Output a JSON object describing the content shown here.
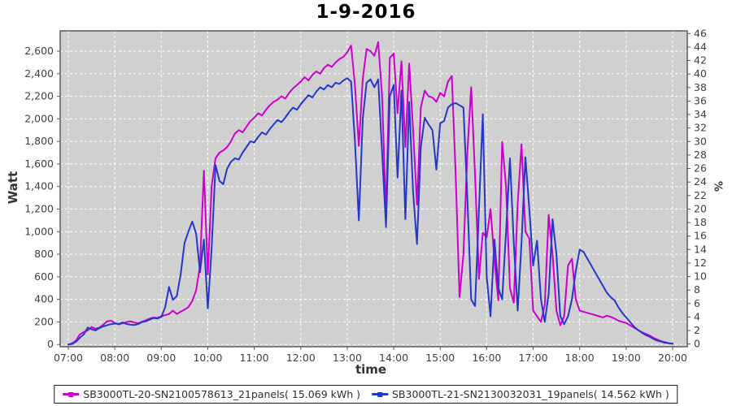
{
  "title": "1-9-2016",
  "chart_data": {
    "type": "line",
    "title": "1-9-2016",
    "plot_bg": "#d0d0d0",
    "grid_color": "#ffffff",
    "border_color": "#5a5a5a",
    "x_axis": {
      "label": "time",
      "tick_hours": [
        7,
        8,
        9,
        10,
        11,
        12,
        13,
        14,
        15,
        16,
        17,
        18,
        19,
        20
      ],
      "tick_labels": [
        "07:00",
        "08:00",
        "09:00",
        "10:00",
        "11:00",
        "12:00",
        "13:00",
        "14:00",
        "15:00",
        "16:00",
        "17:00",
        "18:00",
        "19:00",
        "20:00"
      ],
      "range_hours": [
        6.825,
        20.315
      ]
    },
    "y_left": {
      "label": "Watt",
      "ticks": [
        0,
        200,
        400,
        600,
        800,
        1000,
        1200,
        1400,
        1600,
        1800,
        2000,
        2200,
        2400,
        2600
      ],
      "tick_labels": [
        "0",
        "200",
        "400",
        "600",
        "800",
        "1,000",
        "1,200",
        "1,400",
        "1,600",
        "1,800",
        "2,000",
        "2,200",
        "2,400",
        "2,600"
      ],
      "range": [
        -20,
        2780
      ]
    },
    "y_right": {
      "label": "%",
      "ticks": [
        0,
        2,
        4,
        6,
        8,
        10,
        12,
        14,
        16,
        18,
        20,
        22,
        24,
        26,
        28,
        30,
        32,
        34,
        36,
        38,
        40,
        42,
        44,
        46
      ],
      "range": [
        -0.4,
        46.4
      ]
    },
    "legend_position": "bottom",
    "series": [
      {
        "name": "SB3000TL-20-SN2100578613_21panels( 15.069 kWh )",
        "color": "#cc00cc",
        "t_start_hour": 7,
        "t_step_minutes": 5,
        "values_watt": [
          0,
          10,
          35,
          90,
          110,
          125,
          155,
          140,
          150,
          175,
          205,
          210,
          190,
          178,
          188,
          198,
          205,
          195,
          188,
          202,
          215,
          230,
          240,
          235,
          250,
          260,
          270,
          300,
          270,
          290,
          310,
          330,
          385,
          480,
          700,
          1540,
          620,
          1400,
          1650,
          1700,
          1720,
          1750,
          1800,
          1870,
          1900,
          1880,
          1930,
          1980,
          2010,
          2050,
          2030,
          2080,
          2120,
          2150,
          2170,
          2200,
          2180,
          2230,
          2270,
          2300,
          2330,
          2370,
          2340,
          2390,
          2420,
          2400,
          2450,
          2480,
          2460,
          2500,
          2530,
          2550,
          2590,
          2650,
          2300,
          1760,
          2350,
          2620,
          2600,
          2560,
          2680,
          2200,
          1150,
          2540,
          2580,
          2050,
          2510,
          1750,
          2490,
          1900,
          1240,
          2100,
          2250,
          2200,
          2190,
          2150,
          2230,
          2200,
          2330,
          2380,
          1500,
          420,
          800,
          1700,
          2280,
          1500,
          580,
          990,
          950,
          1200,
          750,
          390,
          1795,
          1400,
          500,
          370,
          1250,
          1775,
          1000,
          940,
          300,
          250,
          200,
          350,
          1150,
          800,
          300,
          170,
          250,
          700,
          760,
          400,
          300,
          290,
          280,
          270,
          260,
          250,
          240,
          255,
          245,
          230,
          210,
          200,
          190,
          170,
          150,
          130,
          110,
          95,
          80,
          60,
          45,
          30,
          20,
          12,
          8
        ]
      },
      {
        "name": "SB3000TL-21-SN2130032031_19panels( 14.562 kWh )",
        "color": "#2438c8",
        "t_start_hour": 7,
        "t_step_minutes": 5,
        "values_watt": [
          0,
          5,
          25,
          60,
          90,
          150,
          135,
          125,
          145,
          160,
          170,
          180,
          185,
          182,
          195,
          182,
          175,
          172,
          180,
          198,
          205,
          220,
          235,
          230,
          245,
          330,
          510,
          395,
          430,
          620,
          900,
          1000,
          1090,
          980,
          640,
          930,
          320,
          850,
          1590,
          1450,
          1420,
          1560,
          1620,
          1650,
          1640,
          1700,
          1750,
          1800,
          1790,
          1840,
          1880,
          1860,
          1910,
          1950,
          1990,
          1970,
          2010,
          2060,
          2100,
          2080,
          2130,
          2170,
          2210,
          2190,
          2240,
          2280,
          2260,
          2300,
          2280,
          2320,
          2310,
          2340,
          2360,
          2330,
          1800,
          1100,
          2000,
          2320,
          2350,
          2280,
          2350,
          1700,
          1040,
          2200,
          2300,
          1480,
          2250,
          1110,
          2150,
          1350,
          890,
          1750,
          2010,
          1950,
          1900,
          1550,
          1960,
          1980,
          2100,
          2130,
          2140,
          2120,
          2100,
          1300,
          400,
          340,
          1200,
          2040,
          600,
          250,
          930,
          500,
          400,
          1000,
          1650,
          900,
          300,
          900,
          1660,
          1200,
          700,
          920,
          400,
          200,
          450,
          1110,
          800,
          250,
          180,
          250,
          400,
          650,
          840,
          820,
          760,
          700,
          640,
          580,
          520,
          460,
          420,
          390,
          330,
          280,
          240,
          200,
          160,
          130,
          105,
          85,
          70,
          50,
          35,
          25,
          15,
          10,
          5
        ]
      }
    ]
  }
}
